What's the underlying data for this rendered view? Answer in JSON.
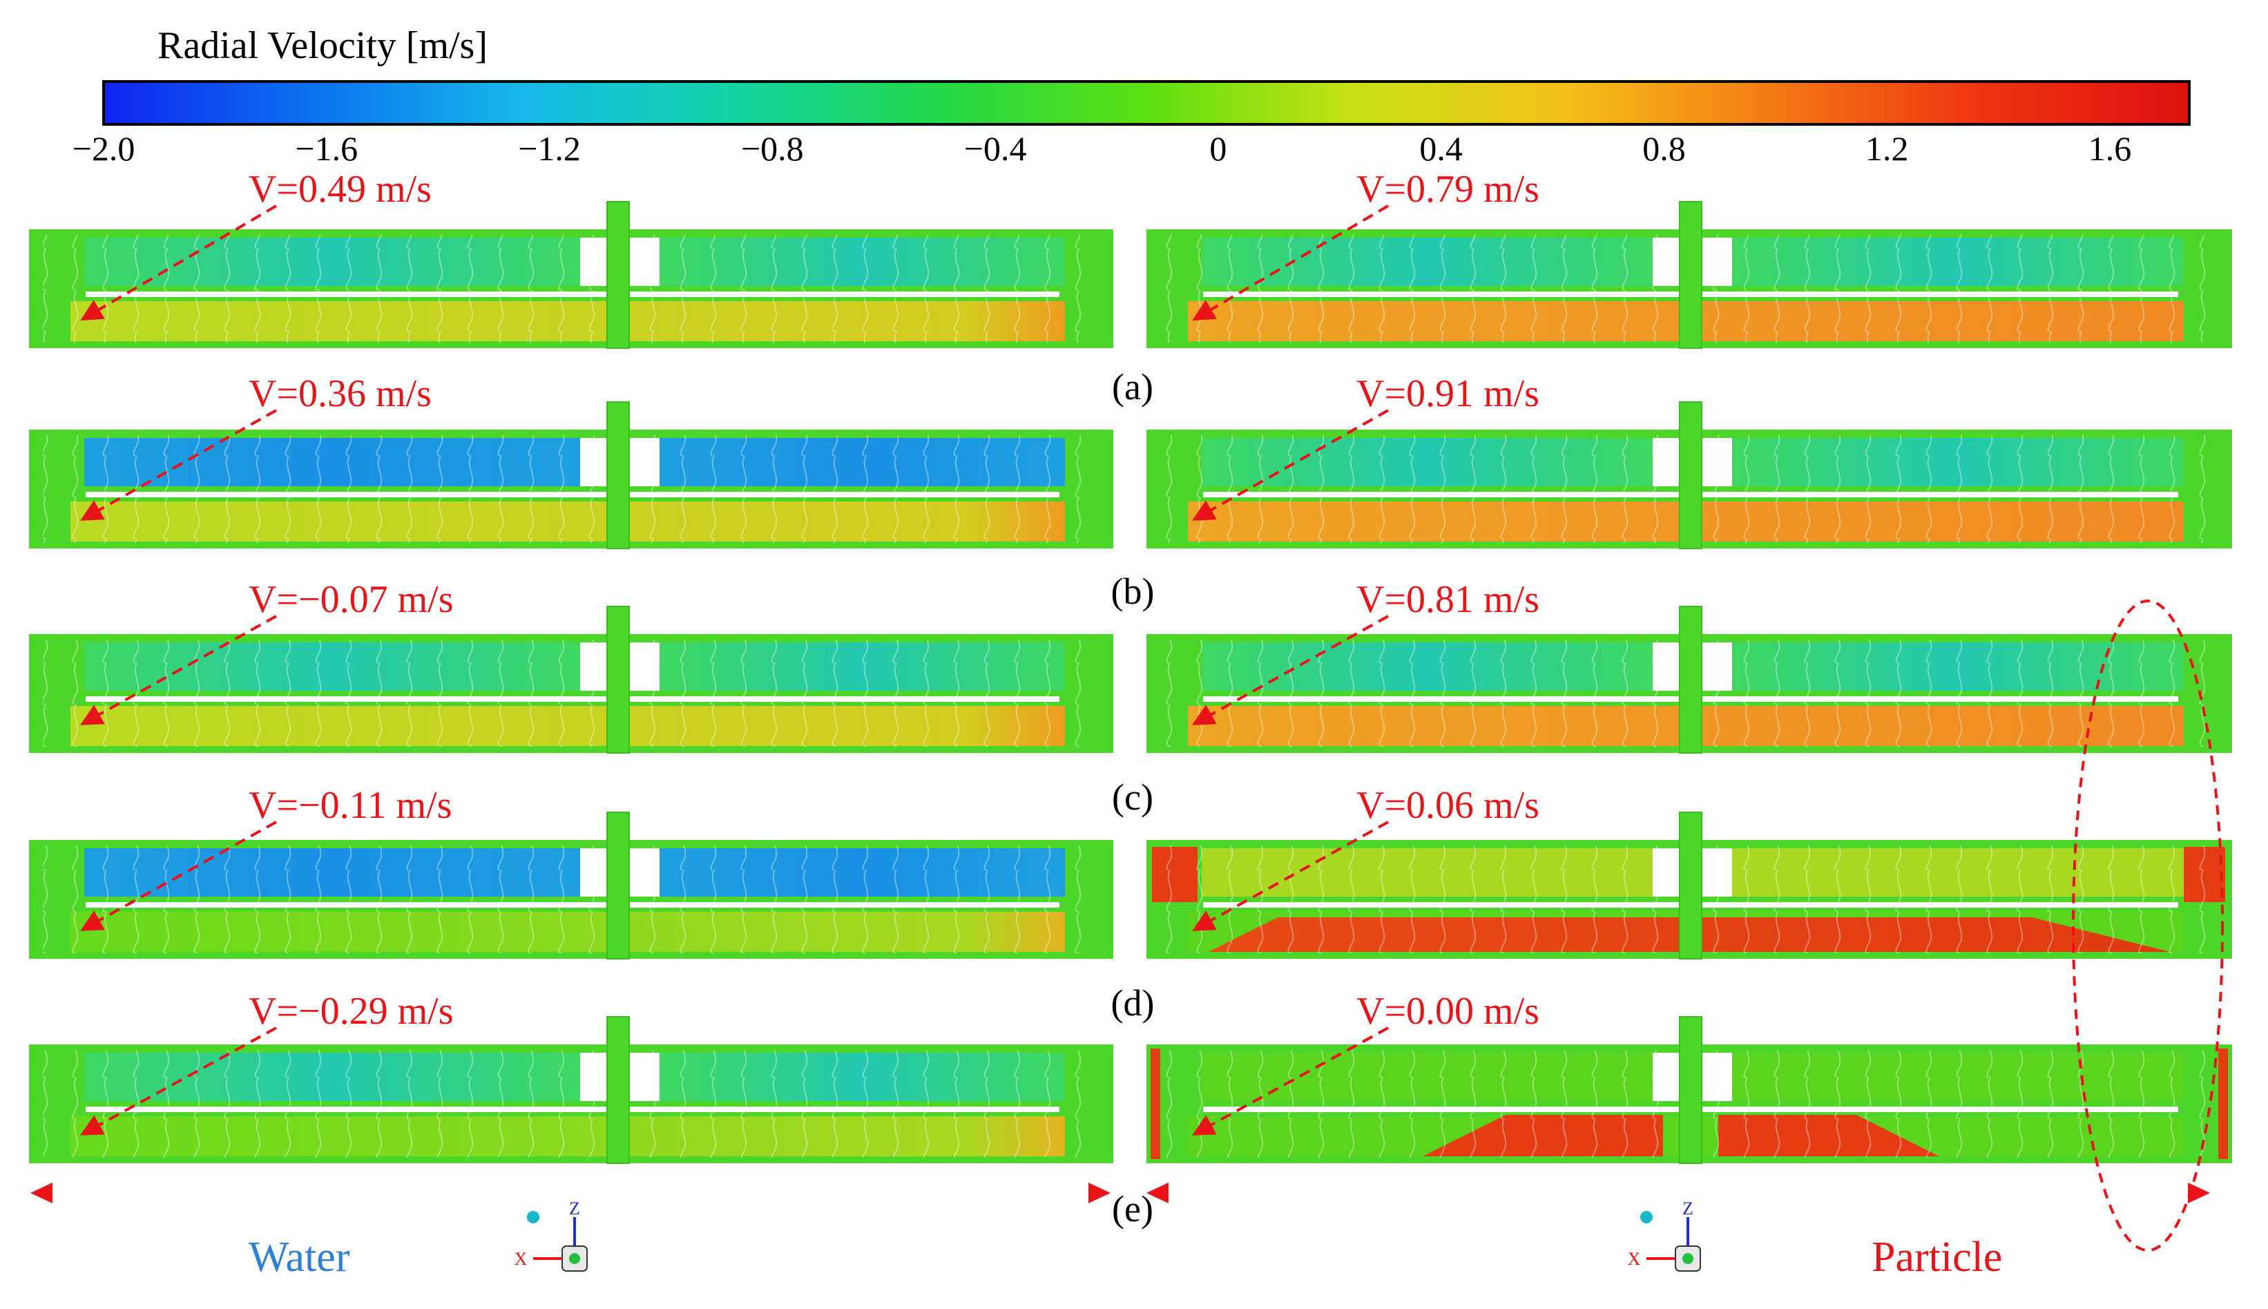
{
  "colorbar": {
    "title": "Radial Velocity [m/s]",
    "ticks": [
      "−2.0",
      "−1.6",
      "−1.2",
      "−0.8",
      "−0.4",
      "0",
      "0.4",
      "0.8",
      "1.2",
      "1.6"
    ],
    "stops": [
      "#1024f0",
      "#0a72ef",
      "#16b8ea",
      "#14d4a8",
      "#22d848",
      "#5ce010",
      "#c8e014",
      "#f4c018",
      "#f47a14",
      "#ee3410",
      "#de1010"
    ]
  },
  "panel_labels": [
    "(a)",
    "(b)",
    "(c)",
    "(d)",
    "(e)"
  ],
  "water_velocity": [
    "V=0.49 m/s",
    "V=0.36 m/s",
    "V=−0.07 m/s",
    "V=−0.11 m/s",
    "V=−0.29 m/s"
  ],
  "particle_velocity": [
    "V=0.79 m/s",
    "V=0.91 m/s",
    "V=0.81 m/s",
    "V=0.06 m/s",
    "V=0.00 m/s"
  ],
  "legend": {
    "water": "Water",
    "particle": "Particle"
  },
  "axes_triad": {
    "z_label": "Z",
    "x_label": "X"
  },
  "colors": {
    "annotation": "#e8141a",
    "water_text": "#2e7fd6",
    "particle_text": "#e8141a",
    "frame_green": "#4dd62a"
  }
}
